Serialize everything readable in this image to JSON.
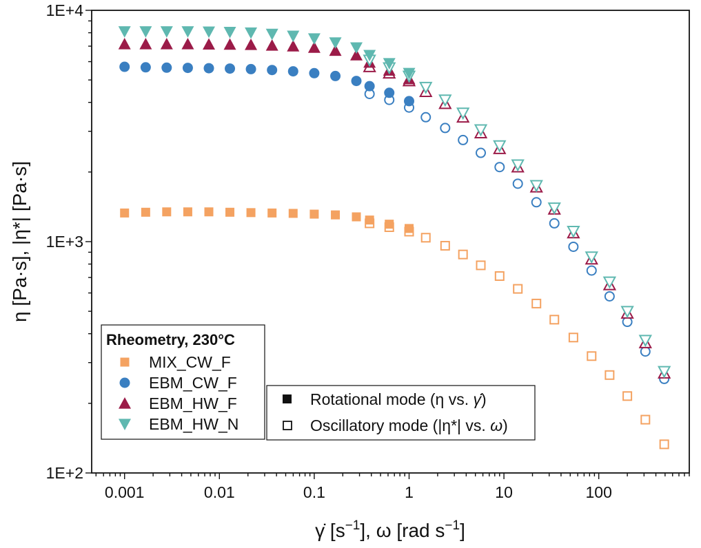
{
  "chart_data": {
    "type": "scatter",
    "title": "",
    "xlabel_parts": [
      "γ̇ [s",
      "−1",
      "], ω [rad s",
      "−1",
      "]"
    ],
    "ylabel_parts": [
      "η [Pa·s], |η*| [Pa·s]"
    ],
    "x_scale": "log",
    "y_scale": "log",
    "xlim": [
      0.00045,
      900
    ],
    "ylim": [
      100,
      10000
    ],
    "x_ticks": [
      {
        "value": 0.001,
        "label": "0.001"
      },
      {
        "value": 0.01,
        "label": "0.01"
      },
      {
        "value": 0.1,
        "label": "0.1"
      },
      {
        "value": 1,
        "label": "1"
      },
      {
        "value": 10,
        "label": "10"
      },
      {
        "value": 100,
        "label": "100"
      }
    ],
    "y_ticks": [
      {
        "value": 100,
        "label": "1E+2"
      },
      {
        "value": 1000,
        "label": "1E+3"
      },
      {
        "value": 10000,
        "label": "1E+4"
      }
    ],
    "grid": false,
    "legend": {
      "title": "Rheometry, 230°C",
      "placement": "lower-left",
      "entries": [
        "MIX_CW_F",
        "EBM_CW_F",
        "EBM_HW_F",
        "EBM_HW_N"
      ]
    },
    "mode_legend": {
      "placement": "bottom-center",
      "entries": [
        {
          "fill": "filled",
          "label_parts": [
            "Rotational mode (η vs. ",
            "γ̇",
            ")"
          ]
        },
        {
          "fill": "open",
          "label_parts": [
            "Oscillatory mode (|η*| vs. ",
            "ω",
            ")"
          ]
        }
      ]
    },
    "series": [
      {
        "name": "MIX_CW_F",
        "marker": "square",
        "color": "#F4A261",
        "rotational": {
          "x": [
            0.001,
            0.00167,
            0.00278,
            0.00464,
            0.00774,
            0.0129,
            0.0215,
            0.0359,
            0.0599,
            0.1,
            0.167,
            0.278,
            0.383,
            0.618,
            1.0
          ],
          "y": [
            1330,
            1340,
            1345,
            1345,
            1345,
            1340,
            1335,
            1330,
            1325,
            1315,
            1305,
            1280,
            1240,
            1190,
            1140
          ]
        },
        "oscillatory": {
          "x": [
            0.383,
            0.618,
            1.0,
            1.5,
            2.4,
            3.7,
            5.7,
            9.0,
            14.0,
            22.0,
            34.0,
            54.0,
            84.0,
            130.0,
            200.0,
            310.0,
            490.0
          ],
          "y": [
            1200,
            1155,
            1105,
            1040,
            960,
            880,
            790,
            710,
            625,
            540,
            460,
            385,
            320,
            265,
            215,
            170,
            133
          ]
        }
      },
      {
        "name": "EBM_CW_F",
        "marker": "circle",
        "color": "#3A7FC1",
        "rotational": {
          "x": [
            0.001,
            0.00167,
            0.00278,
            0.00464,
            0.00774,
            0.0129,
            0.0215,
            0.0359,
            0.0599,
            0.1,
            0.167,
            0.278,
            0.383,
            0.618,
            1.0
          ],
          "y": [
            5700,
            5670,
            5650,
            5640,
            5620,
            5600,
            5570,
            5520,
            5450,
            5350,
            5200,
            4950,
            4700,
            4400,
            4050
          ]
        },
        "oscillatory": {
          "x": [
            0.383,
            0.618,
            1.0,
            1.5,
            2.4,
            3.7,
            5.7,
            9.0,
            14.0,
            22.0,
            34.0,
            54.0,
            84.0,
            130.0,
            200.0,
            310.0,
            490.0
          ],
          "y": [
            4350,
            4100,
            3800,
            3450,
            3100,
            2750,
            2420,
            2100,
            1780,
            1480,
            1200,
            950,
            750,
            580,
            450,
            335,
            255
          ]
        }
      },
      {
        "name": "EBM_HW_F",
        "marker": "triangle-up",
        "color": "#9B1B48",
        "rotational": {
          "x": [
            0.001,
            0.00167,
            0.00278,
            0.00464,
            0.00774,
            0.0129,
            0.0215,
            0.0359,
            0.0599,
            0.1,
            0.167,
            0.278,
            0.383,
            0.618,
            1.0
          ],
          "y": [
            7150,
            7150,
            7150,
            7150,
            7130,
            7120,
            7100,
            7050,
            7000,
            6900,
            6700,
            6400,
            5950,
            5500,
            5050
          ]
        },
        "oscillatory": {
          "x": [
            0.383,
            0.618,
            1.0,
            1.5,
            2.4,
            3.7,
            5.7,
            9.0,
            14.0,
            22.0,
            34.0,
            54.0,
            84.0,
            130.0,
            200.0,
            310.0,
            490.0
          ],
          "y": [
            5700,
            5350,
            4950,
            4450,
            3950,
            3450,
            2950,
            2520,
            2100,
            1720,
            1380,
            1090,
            840,
            650,
            490,
            365,
            270
          ]
        }
      },
      {
        "name": "EBM_HW_N",
        "marker": "triangle-down",
        "color": "#5FB8B0",
        "rotational": {
          "x": [
            0.001,
            0.00167,
            0.00278,
            0.00464,
            0.00774,
            0.0129,
            0.0215,
            0.0359,
            0.0599,
            0.1,
            0.167,
            0.278,
            0.383,
            0.618,
            1.0
          ],
          "y": [
            8100,
            8100,
            8100,
            8100,
            8080,
            8050,
            8000,
            7900,
            7750,
            7550,
            7250,
            6900,
            6400,
            5900,
            5350
          ]
        },
        "oscillatory": {
          "x": [
            0.383,
            0.618,
            1.0,
            1.5,
            2.4,
            3.7,
            5.7,
            9.0,
            14.0,
            22.0,
            34.0,
            54.0,
            84.0,
            130.0,
            200.0,
            310.0,
            490.0
          ],
          "y": [
            6100,
            5650,
            5200,
            4650,
            4100,
            3600,
            3050,
            2600,
            2150,
            1750,
            1400,
            1110,
            860,
            670,
            500,
            375,
            275
          ]
        }
      }
    ]
  }
}
